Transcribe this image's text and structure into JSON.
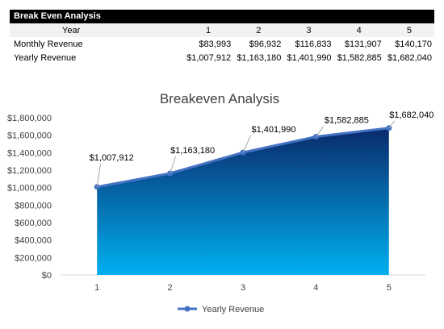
{
  "table": {
    "title": "Break Even Analysis",
    "header_label": "Year",
    "years": [
      "1",
      "2",
      "3",
      "4",
      "5"
    ],
    "rows": [
      {
        "label": "Monthly Revenue",
        "values": [
          "$83,993",
          "$96,932",
          "$116,833",
          "$131,907",
          "$140,170"
        ]
      },
      {
        "label": "Yearly Revenue",
        "values": [
          "$1,007,912",
          "$1,163,180",
          "$1,401,990",
          "$1,582,885",
          "$1,682,040"
        ]
      }
    ]
  },
  "colors": {
    "line": "#4472c4",
    "area_top": "#0a2a6b",
    "area_bottom": "#00b0f0",
    "grid": "#d9d9d9"
  },
  "chart_data": {
    "type": "area",
    "title": "Breakeven Analysis",
    "categories": [
      "1",
      "2",
      "3",
      "4",
      "5"
    ],
    "series": [
      {
        "name": "Yearly Revenue",
        "values": [
          1007912,
          1163180,
          1401990,
          1582885,
          1682040
        ]
      }
    ],
    "data_labels": [
      "$1,007,912",
      "$1,163,180",
      "$1,401,990",
      "$1,582,885",
      "$1,682,040"
    ],
    "yticks": [
      "$0",
      "$200,000",
      "$400,000",
      "$600,000",
      "$800,000",
      "$1,000,000",
      "$1,200,000",
      "$1,400,000",
      "$1,600,000",
      "$1,800,000"
    ],
    "ylim": [
      0,
      1800000
    ],
    "xlabel": "",
    "ylabel": "",
    "legend": "bottom",
    "grid": false
  }
}
